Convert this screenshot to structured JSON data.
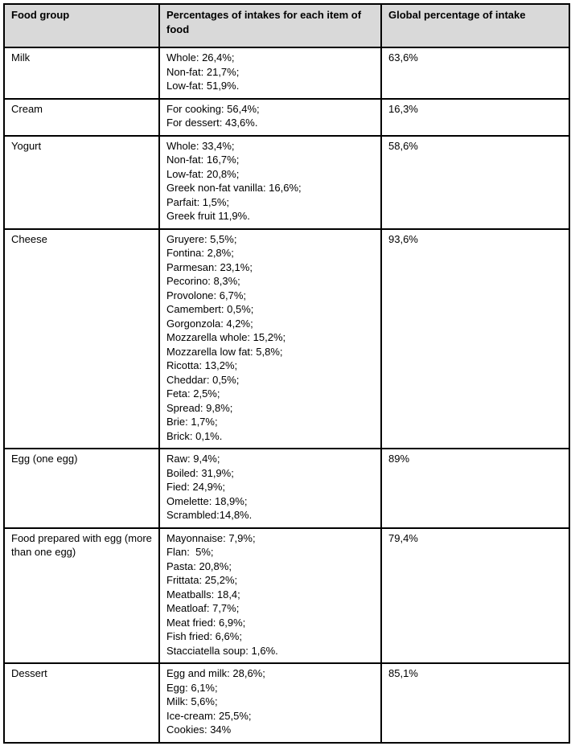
{
  "colors": {
    "header_bg": "#d9d9d9",
    "border": "#000000",
    "text": "#000000",
    "page_bg": "#ffffff"
  },
  "table": {
    "headers": [
      "Food group",
      "Percentages of intakes for each item of food",
      "Global percentage of intake"
    ],
    "rows": [
      {
        "group": "Milk",
        "items": [
          "Whole: 26,4%;",
          "Non-fat: 21,7%;",
          "Low-fat: 51,9%."
        ],
        "global": "63,6%"
      },
      {
        "group": "Cream",
        "items": [
          "For cooking: 56,4%;",
          "For dessert: 43,6%."
        ],
        "global": "16,3%"
      },
      {
        "group": "Yogurt",
        "items": [
          "Whole: 33,4%;",
          "Non-fat: 16,7%;",
          "Low-fat: 20,8%;",
          "Greek non-fat vanilla: 16,6%;",
          "Parfait: 1,5%;",
          "Greek fruit 11,9%."
        ],
        "global": "58,6%"
      },
      {
        "group": "Cheese",
        "items": [
          "Gruyere: 5,5%;",
          "Fontina: 2,8%;",
          "Parmesan: 23,1%;",
          "Pecorino: 8,3%;",
          "Provolone: 6,7%;",
          "Camembert: 0,5%;",
          "Gorgonzola: 4,2%;",
          "Mozzarella whole: 15,2%;",
          "Mozzarella low fat: 5,8%;",
          "Ricotta: 13,2%;",
          "Cheddar: 0,5%;",
          "Feta: 2,5%;",
          "Spread: 9,8%;",
          "Brie: 1,7%;",
          "Brick: 0,1%."
        ],
        "global": "93,6%"
      },
      {
        "group": "Egg (one egg)",
        "items": [
          "Raw: 9,4%;",
          "Boiled: 31,9%;",
          "Fied: 24,9%;",
          "Omelette: 18,9%;",
          "Scrambled:14,8%."
        ],
        "global": "89%"
      },
      {
        "group": "Food prepared with egg (more than one egg)",
        "items": [
          "Mayonnaise: 7,9%;",
          "Flan:  5%;",
          "Pasta: 20,8%;",
          "Frittata: 25,2%;",
          "Meatballs: 18,4;",
          "Meatloaf: 7,7%;",
          "Meat fried: 6,9%;",
          "Fish fried: 6,6%;",
          "Stacciatella soup: 1,6%."
        ],
        "global": "79,4%"
      },
      {
        "group": "Dessert",
        "items": [
          "Egg and milk: 28,6%;",
          "Egg: 6,1%;",
          "Milk: 5,6%;",
          "Ice-cream: 25,5%;",
          "Cookies: 34%"
        ],
        "global": "85,1%"
      }
    ]
  }
}
